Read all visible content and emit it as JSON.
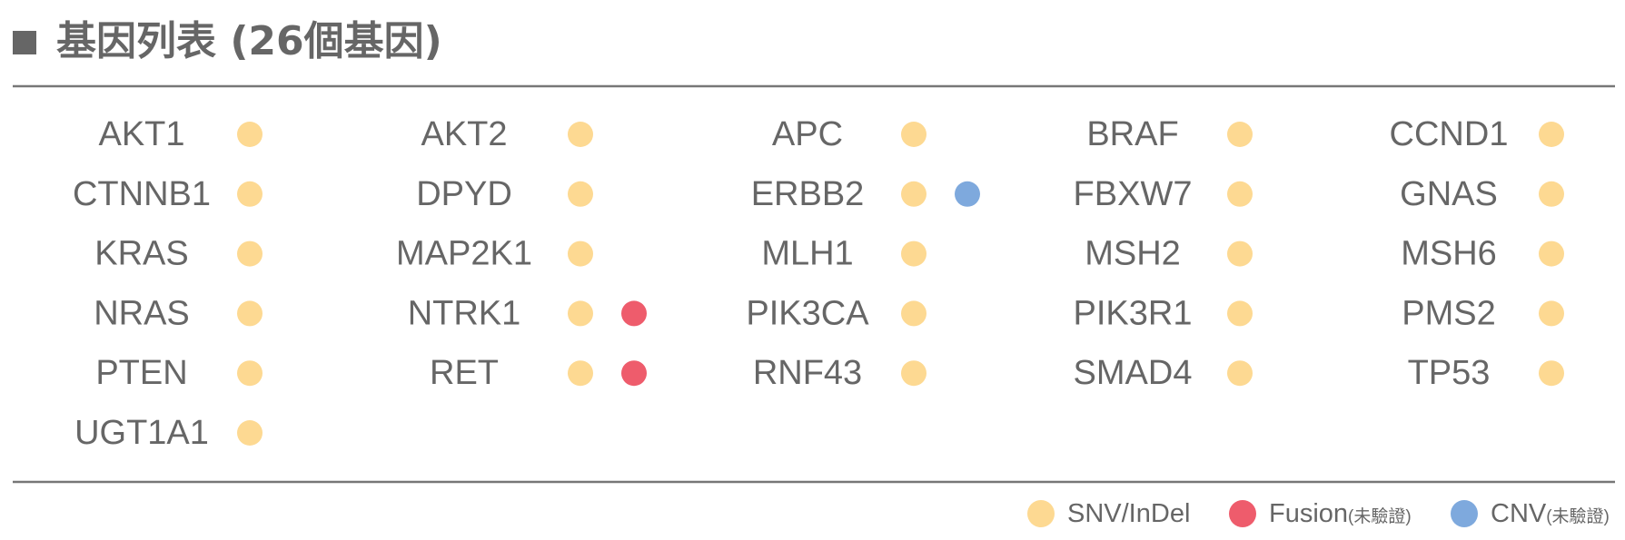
{
  "header": {
    "title": "基因列表 (26個基因)"
  },
  "legend": [
    {
      "label": "SNV/InDel",
      "color": "#fdd992"
    },
    {
      "label": "Fusion",
      "note": "(未驗證)",
      "color": "#ee5c6c"
    },
    {
      "label": "CNV",
      "note": "(未驗證)",
      "color": "#7ea9dd"
    }
  ],
  "genes": [
    {
      "name": "AKT1",
      "types": [
        0
      ]
    },
    {
      "name": "AKT2",
      "types": [
        0
      ]
    },
    {
      "name": "APC",
      "types": [
        0
      ]
    },
    {
      "name": "BRAF",
      "types": [
        0
      ]
    },
    {
      "name": "CCND1",
      "types": [
        0
      ]
    },
    {
      "name": "CTNNB1",
      "types": [
        0
      ]
    },
    {
      "name": "DPYD",
      "types": [
        0
      ]
    },
    {
      "name": "ERBB2",
      "types": [
        0,
        2
      ]
    },
    {
      "name": "FBXW7",
      "types": [
        0
      ]
    },
    {
      "name": "GNAS",
      "types": [
        0
      ]
    },
    {
      "name": "KRAS",
      "types": [
        0
      ]
    },
    {
      "name": "MAP2K1",
      "types": [
        0
      ]
    },
    {
      "name": "MLH1",
      "types": [
        0
      ]
    },
    {
      "name": "MSH2",
      "types": [
        0
      ]
    },
    {
      "name": "MSH6",
      "types": [
        0
      ]
    },
    {
      "name": "NRAS",
      "types": [
        0
      ]
    },
    {
      "name": "NTRK1",
      "types": [
        0,
        1
      ]
    },
    {
      "name": "PIK3CA",
      "types": [
        0
      ]
    },
    {
      "name": "PIK3R1",
      "types": [
        0
      ]
    },
    {
      "name": "PMS2",
      "types": [
        0
      ]
    },
    {
      "name": "PTEN",
      "types": [
        0
      ]
    },
    {
      "name": "RET",
      "types": [
        0,
        1
      ]
    },
    {
      "name": "RNF43",
      "types": [
        0
      ]
    },
    {
      "name": "SMAD4",
      "types": [
        0
      ]
    },
    {
      "name": "TP53",
      "types": [
        0
      ]
    },
    {
      "name": "UGT1A1",
      "types": [
        0
      ]
    }
  ]
}
